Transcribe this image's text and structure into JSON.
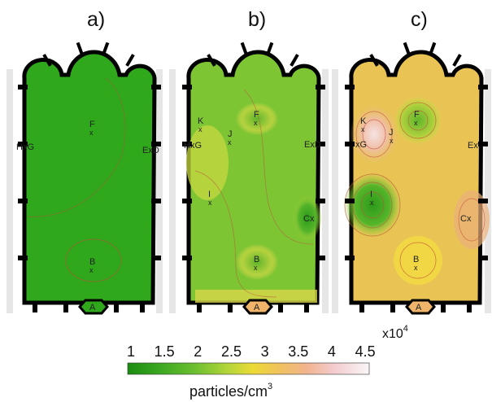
{
  "figure": {
    "panels": [
      {
        "id": "a",
        "label": "a)",
        "fill_color": "#2fa81c",
        "points": [
          {
            "label": "F"
          },
          {
            "label": "HxG"
          },
          {
            "label": "ExD"
          },
          {
            "label": "B"
          },
          {
            "label": "A"
          }
        ]
      },
      {
        "id": "b",
        "label": "b)",
        "fill_color": "#7ec534",
        "points": [
          {
            "label": "K"
          },
          {
            "label": "HxG"
          },
          {
            "label": "J"
          },
          {
            "label": "F"
          },
          {
            "label": "ExD"
          },
          {
            "label": "I"
          },
          {
            "label": "Cx"
          },
          {
            "label": "B"
          },
          {
            "label": "A"
          }
        ]
      },
      {
        "id": "c",
        "label": "c)",
        "fill_color": "#e9c455",
        "points": [
          {
            "label": "K"
          },
          {
            "label": "xG"
          },
          {
            "label": "J"
          },
          {
            "label": "F"
          },
          {
            "label": "Ex"
          },
          {
            "label": "I"
          },
          {
            "label": "Cx"
          },
          {
            "label": "B"
          },
          {
            "label": "A"
          }
        ]
      }
    ],
    "colorbar": {
      "ticks": [
        "1",
        "1.5",
        "2",
        "2.5",
        "3",
        "3.5",
        "4",
        "4.5"
      ],
      "scale": "x10",
      "scale_exponent": "4",
      "unit_text": "particles/cm",
      "unit_exponent": "3",
      "colors": [
        "#1a8c12",
        "#31a61c",
        "#58b92a",
        "#8fcc38",
        "#c9da3a",
        "#efd533",
        "#f3c98a",
        "#f1b7a0",
        "#f3d3d5",
        "#f7f1f3"
      ]
    }
  }
}
